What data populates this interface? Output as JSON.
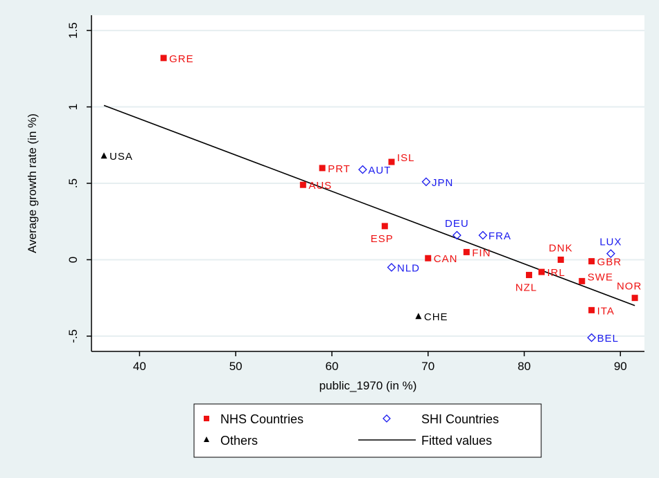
{
  "chart_data": {
    "type": "scatter",
    "title": "",
    "xlabel": "public_1970 (in %)",
    "ylabel": "Average growth rate (in %)",
    "xlim": [
      35,
      92.5
    ],
    "ylim": [
      -0.6,
      1.6
    ],
    "xticks": [
      40,
      50,
      60,
      70,
      80,
      90
    ],
    "yticks": [
      {
        "value": -0.5,
        "label": "-.5"
      },
      {
        "value": 0,
        "label": "0"
      },
      {
        "value": 0.5,
        "label": ".5"
      },
      {
        "value": 1,
        "label": "1"
      },
      {
        "value": 1.5,
        "label": "1.5"
      }
    ],
    "grid": true,
    "legend_position": "bottom",
    "series": [
      {
        "name": "NHS Countries",
        "marker": "square",
        "color": "#ee1111",
        "points": [
          {
            "label": "GRE",
            "x": 42.5,
            "y": 1.32,
            "pos": "right"
          },
          {
            "label": "PRT",
            "x": 59.0,
            "y": 0.6,
            "pos": "right"
          },
          {
            "label": "ISL",
            "x": 66.2,
            "y": 0.64,
            "pos": "right-up"
          },
          {
            "label": "AUS",
            "x": 57.0,
            "y": 0.49,
            "pos": "right"
          },
          {
            "label": "ESP",
            "x": 65.5,
            "y": 0.22,
            "pos": "below"
          },
          {
            "label": "CAN",
            "x": 70.0,
            "y": 0.01,
            "pos": "right"
          },
          {
            "label": "FIN",
            "x": 74.0,
            "y": 0.05,
            "pos": "right"
          },
          {
            "label": "DNK",
            "x": 83.8,
            "y": 0.0,
            "pos": "above"
          },
          {
            "label": "GBR",
            "x": 87.0,
            "y": -0.01,
            "pos": "right"
          },
          {
            "label": "IRL",
            "x": 81.8,
            "y": -0.08,
            "pos": "right"
          },
          {
            "label": "NZL",
            "x": 80.5,
            "y": -0.1,
            "pos": "below"
          },
          {
            "label": "SWE",
            "x": 86.0,
            "y": -0.14,
            "pos": "right-up"
          },
          {
            "label": "NOR",
            "x": 91.5,
            "y": -0.25,
            "pos": "above-left"
          },
          {
            "label": "ITA",
            "x": 87.0,
            "y": -0.33,
            "pos": "right"
          }
        ]
      },
      {
        "name": "SHI Countries",
        "marker": "diamond",
        "color": "#1a1aee",
        "points": [
          {
            "label": "AUT",
            "x": 63.2,
            "y": 0.59,
            "pos": "right"
          },
          {
            "label": "JPN",
            "x": 69.8,
            "y": 0.51,
            "pos": "right"
          },
          {
            "label": "DEU",
            "x": 73.0,
            "y": 0.16,
            "pos": "above"
          },
          {
            "label": "FRA",
            "x": 75.7,
            "y": 0.16,
            "pos": "right"
          },
          {
            "label": "LUX",
            "x": 89.0,
            "y": 0.04,
            "pos": "above"
          },
          {
            "label": "NLD",
            "x": 66.2,
            "y": -0.05,
            "pos": "right"
          },
          {
            "label": "BEL",
            "x": 87.0,
            "y": -0.51,
            "pos": "right"
          }
        ]
      },
      {
        "name": "Others",
        "marker": "triangle",
        "color": "#000000",
        "points": [
          {
            "label": "USA",
            "x": 36.3,
            "y": 0.68,
            "pos": "right"
          },
          {
            "label": "CHE",
            "x": 69.0,
            "y": -0.37,
            "pos": "right"
          }
        ]
      }
    ],
    "fitted_line": {
      "name": "Fitted values",
      "color": "#000000",
      "x": [
        36.3,
        91.5
      ],
      "y": [
        1.01,
        -0.3
      ]
    }
  }
}
